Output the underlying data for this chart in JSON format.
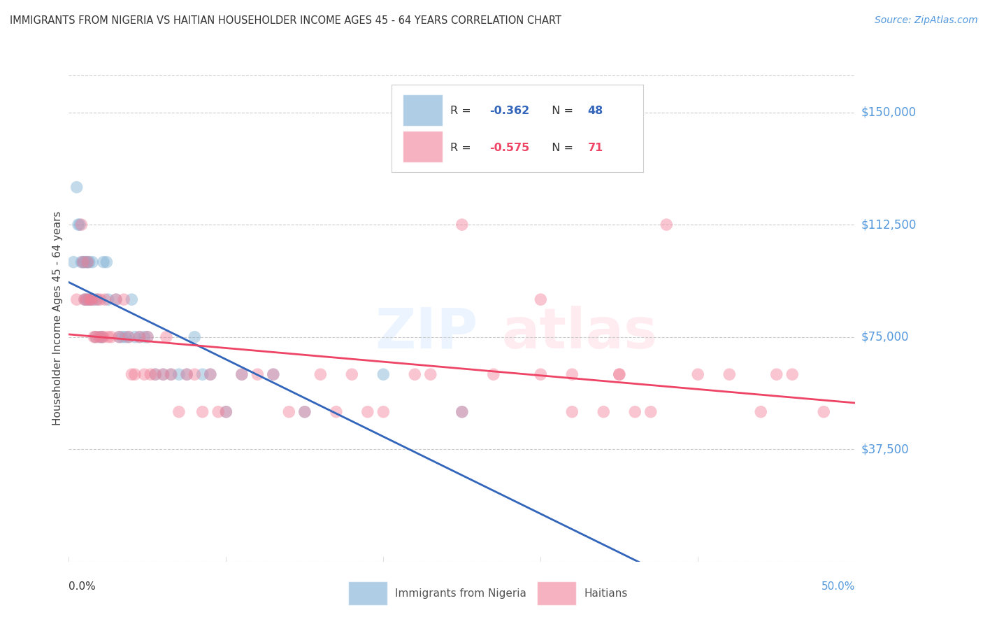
{
  "title": "IMMIGRANTS FROM NIGERIA VS HAITIAN HOUSEHOLDER INCOME AGES 45 - 64 YEARS CORRELATION CHART",
  "source": "Source: ZipAtlas.com",
  "ylabel": "Householder Income Ages 45 - 64 years",
  "xlim": [
    0.0,
    0.5
  ],
  "ylim": [
    0,
    162500
  ],
  "yticks": [
    37500,
    75000,
    112500,
    150000
  ],
  "ytick_labels": [
    "$37,500",
    "$75,000",
    "$112,500",
    "$150,000"
  ],
  "nigeria_color": "#7aadd4",
  "haiti_color": "#f08098",
  "nigeria_line_color": "#3366bb",
  "haiti_line_color": "#ee4466",
  "nigeria_dash_color": "#aaccee",
  "nigeria_points": [
    [
      0.003,
      100000
    ],
    [
      0.005,
      125000
    ],
    [
      0.006,
      112500
    ],
    [
      0.007,
      112500
    ],
    [
      0.008,
      100000
    ],
    [
      0.009,
      100000
    ],
    [
      0.01,
      100000
    ],
    [
      0.01,
      87500
    ],
    [
      0.011,
      100000
    ],
    [
      0.011,
      87500
    ],
    [
      0.012,
      100000
    ],
    [
      0.012,
      87500
    ],
    [
      0.013,
      100000
    ],
    [
      0.013,
      87500
    ],
    [
      0.014,
      87500
    ],
    [
      0.015,
      100000
    ],
    [
      0.016,
      87500
    ],
    [
      0.017,
      75000
    ],
    [
      0.018,
      87500
    ],
    [
      0.02,
      75000
    ],
    [
      0.021,
      75000
    ],
    [
      0.022,
      100000
    ],
    [
      0.024,
      100000
    ],
    [
      0.025,
      87500
    ],
    [
      0.03,
      87500
    ],
    [
      0.032,
      75000
    ],
    [
      0.034,
      75000
    ],
    [
      0.036,
      75000
    ],
    [
      0.038,
      75000
    ],
    [
      0.04,
      87500
    ],
    [
      0.042,
      75000
    ],
    [
      0.045,
      75000
    ],
    [
      0.048,
      75000
    ],
    [
      0.05,
      75000
    ],
    [
      0.055,
      62500
    ],
    [
      0.06,
      62500
    ],
    [
      0.065,
      62500
    ],
    [
      0.07,
      62500
    ],
    [
      0.075,
      62500
    ],
    [
      0.08,
      75000
    ],
    [
      0.085,
      62500
    ],
    [
      0.09,
      62500
    ],
    [
      0.1,
      50000
    ],
    [
      0.11,
      62500
    ],
    [
      0.13,
      62500
    ],
    [
      0.15,
      50000
    ],
    [
      0.2,
      62500
    ],
    [
      0.25,
      50000
    ]
  ],
  "haiti_points": [
    [
      0.005,
      87500
    ],
    [
      0.008,
      112500
    ],
    [
      0.009,
      100000
    ],
    [
      0.01,
      87500
    ],
    [
      0.011,
      87500
    ],
    [
      0.012,
      100000
    ],
    [
      0.013,
      87500
    ],
    [
      0.014,
      87500
    ],
    [
      0.015,
      87500
    ],
    [
      0.016,
      75000
    ],
    [
      0.017,
      75000
    ],
    [
      0.018,
      87500
    ],
    [
      0.019,
      75000
    ],
    [
      0.02,
      87500
    ],
    [
      0.021,
      75000
    ],
    [
      0.022,
      75000
    ],
    [
      0.023,
      87500
    ],
    [
      0.025,
      75000
    ],
    [
      0.027,
      75000
    ],
    [
      0.03,
      87500
    ],
    [
      0.032,
      75000
    ],
    [
      0.035,
      87500
    ],
    [
      0.038,
      75000
    ],
    [
      0.04,
      62500
    ],
    [
      0.042,
      62500
    ],
    [
      0.045,
      75000
    ],
    [
      0.048,
      62500
    ],
    [
      0.05,
      75000
    ],
    [
      0.052,
      62500
    ],
    [
      0.055,
      62500
    ],
    [
      0.06,
      62500
    ],
    [
      0.062,
      75000
    ],
    [
      0.065,
      62500
    ],
    [
      0.07,
      50000
    ],
    [
      0.075,
      62500
    ],
    [
      0.08,
      62500
    ],
    [
      0.085,
      50000
    ],
    [
      0.09,
      62500
    ],
    [
      0.095,
      50000
    ],
    [
      0.1,
      50000
    ],
    [
      0.11,
      62500
    ],
    [
      0.12,
      62500
    ],
    [
      0.13,
      62500
    ],
    [
      0.14,
      50000
    ],
    [
      0.15,
      50000
    ],
    [
      0.16,
      62500
    ],
    [
      0.17,
      50000
    ],
    [
      0.18,
      62500
    ],
    [
      0.19,
      50000
    ],
    [
      0.2,
      50000
    ],
    [
      0.22,
      62500
    ],
    [
      0.23,
      62500
    ],
    [
      0.25,
      50000
    ],
    [
      0.27,
      62500
    ],
    [
      0.3,
      62500
    ],
    [
      0.32,
      50000
    ],
    [
      0.34,
      50000
    ],
    [
      0.35,
      62500
    ],
    [
      0.36,
      50000
    ],
    [
      0.37,
      50000
    ],
    [
      0.38,
      112500
    ],
    [
      0.4,
      62500
    ],
    [
      0.42,
      62500
    ],
    [
      0.44,
      50000
    ],
    [
      0.25,
      112500
    ],
    [
      0.3,
      87500
    ],
    [
      0.32,
      62500
    ],
    [
      0.35,
      62500
    ],
    [
      0.45,
      62500
    ],
    [
      0.46,
      62500
    ],
    [
      0.48,
      50000
    ]
  ]
}
